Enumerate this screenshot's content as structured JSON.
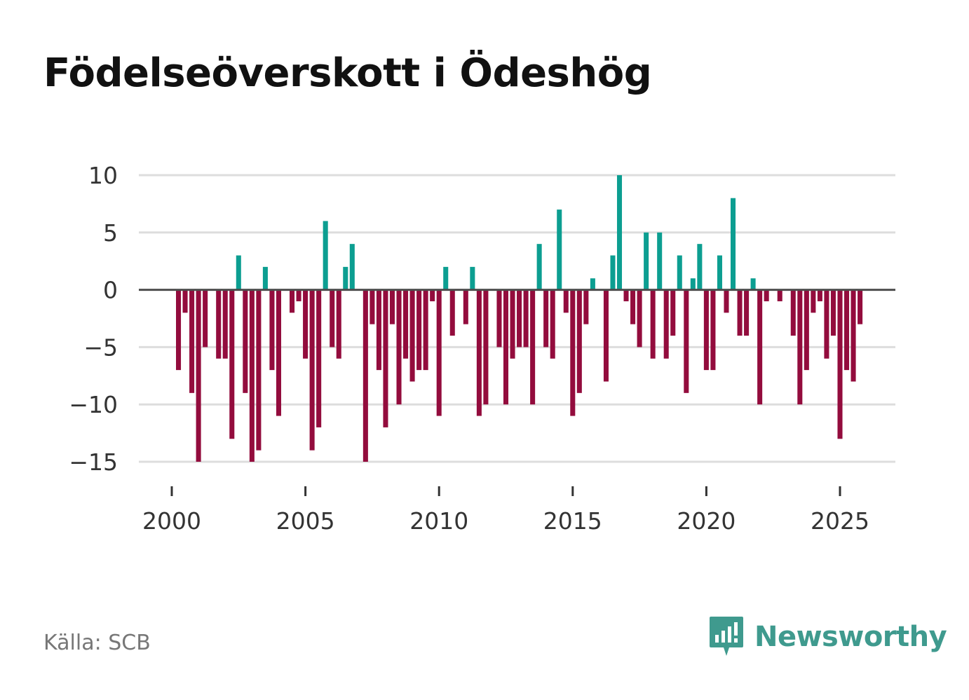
{
  "title": "Födelseöverskott i Ödeshög",
  "source": "Källa: SCB",
  "brand": "Newsworthy",
  "colors": {
    "positive": "#0c9e91",
    "negative": "#930c3d",
    "grid": "#dddddd",
    "zero": "#4d4d4d",
    "brand": "#3f9a8e"
  },
  "chart_data": {
    "type": "bar",
    "x_start": 2000.25,
    "x_step": 0.25,
    "values": [
      -7,
      -2,
      -9,
      -15,
      -5,
      0,
      -6,
      -6,
      -13,
      3,
      -9,
      -15,
      -14,
      2,
      -7,
      -11,
      0,
      -2,
      -1,
      -6,
      -14,
      -12,
      6,
      -5,
      -6,
      2,
      4,
      0,
      -15,
      -3,
      -7,
      -12,
      -3,
      -10,
      -6,
      -8,
      -7,
      -7,
      -1,
      -11,
      2,
      -4,
      0,
      -3,
      2,
      -11,
      -10,
      0,
      -5,
      -10,
      -6,
      -5,
      -5,
      -10,
      4,
      -5,
      -6,
      7,
      -2,
      -11,
      -9,
      -3,
      1,
      0,
      -8,
      3,
      10,
      -1,
      -3,
      -5,
      5,
      -6,
      5,
      -6,
      -4,
      3,
      -9,
      1,
      4,
      -7,
      -7,
      3,
      -2,
      8,
      -4,
      -4,
      1,
      -10,
      -1,
      0,
      -1,
      0,
      -4,
      -10,
      -7,
      -2,
      -1,
      -6,
      -4,
      -13,
      -7,
      -8,
      -3
    ],
    "y_ticks": [
      10,
      5,
      0,
      -5,
      -10,
      -15
    ],
    "y_tick_labels": [
      "10",
      "5",
      "0",
      "−5",
      "−10",
      "−15"
    ],
    "x_ticks": [
      2000,
      2005,
      2010,
      2015,
      2020,
      2025
    ],
    "x_tick_labels": [
      "2000",
      "2005",
      "2010",
      "2015",
      "2020",
      "2025"
    ],
    "ylim": [
      -15,
      10
    ],
    "xlim": [
      1999.5,
      2027.4
    ],
    "xlabel": "",
    "ylabel": ""
  }
}
